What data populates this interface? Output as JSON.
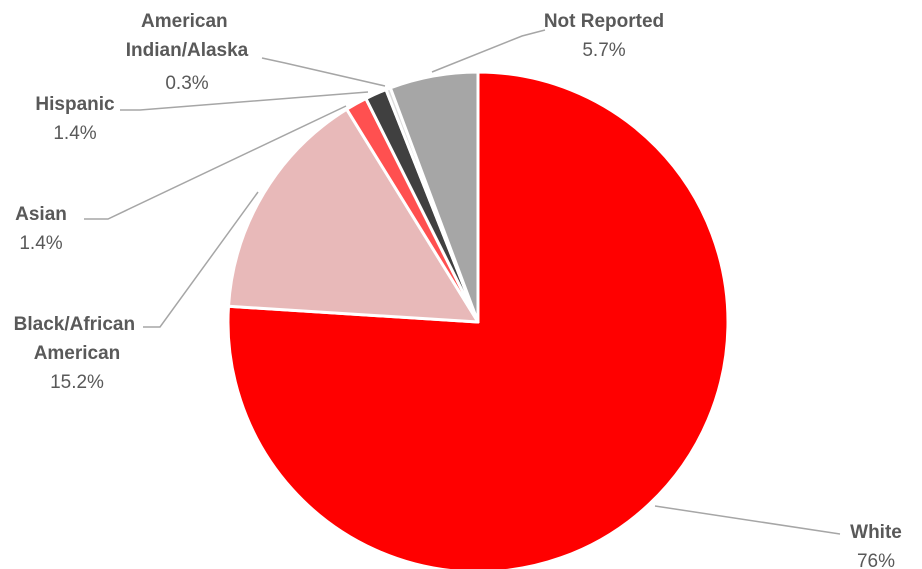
{
  "chart_data": {
    "type": "pie",
    "title": "",
    "start_angle_deg": 0,
    "direction": "clockwise",
    "legend": "none",
    "slices": [
      {
        "label": "White",
        "value_label": "76%",
        "value": 76.0,
        "color": "#ff0000"
      },
      {
        "label": "Black/African American",
        "value_label": "15.2%",
        "value": 15.2,
        "color": "#e8b9b9"
      },
      {
        "label": "Asian",
        "value_label": "1.4%",
        "value": 1.4,
        "color": "#ff5050"
      },
      {
        "label": "Hispanic",
        "value_label": "1.4%",
        "value": 1.4,
        "color": "#404040"
      },
      {
        "label": "American Indian/Alaska",
        "value_label": "0.3%",
        "value": 0.3,
        "color": "#dcdcdc"
      },
      {
        "label": "Not Reported",
        "value_label": "5.7%",
        "value": 5.7,
        "color": "#a6a6a6"
      }
    ]
  }
}
